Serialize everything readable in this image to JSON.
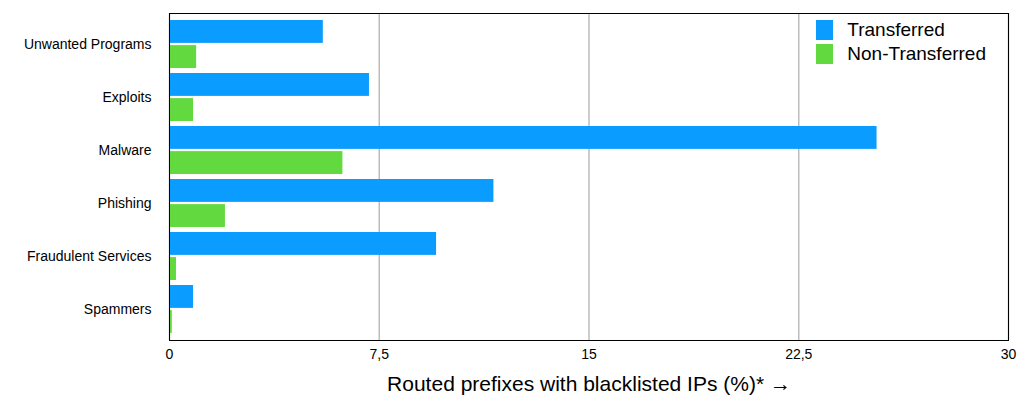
{
  "chart_data": {
    "type": "bar",
    "orientation": "horizontal",
    "categories": [
      "Unwanted Programs",
      "Exploits",
      "Malware",
      "Phishing",
      "Fraudulent Services",
      "Spammers"
    ],
    "series": [
      {
        "name": "Transferred",
        "color": "#0a9cff",
        "values": [
          5.5,
          7.15,
          25.3,
          11.6,
          9.55,
          0.86
        ]
      },
      {
        "name": "Non-Transferred",
        "color": "#62d93f",
        "values": [
          0.97,
          0.86,
          6.2,
          2.0,
          0.25,
          0.1
        ]
      }
    ],
    "xlabel": "Routed prefixes with blacklisted IPs (%)*",
    "xlim": [
      0,
      30
    ],
    "xticks": [
      0,
      {
        "value": 7.5,
        "label": "7,5"
      },
      15,
      {
        "value": 22.5,
        "label": "22,5"
      },
      30
    ],
    "grid": true,
    "legend": "top-right"
  }
}
